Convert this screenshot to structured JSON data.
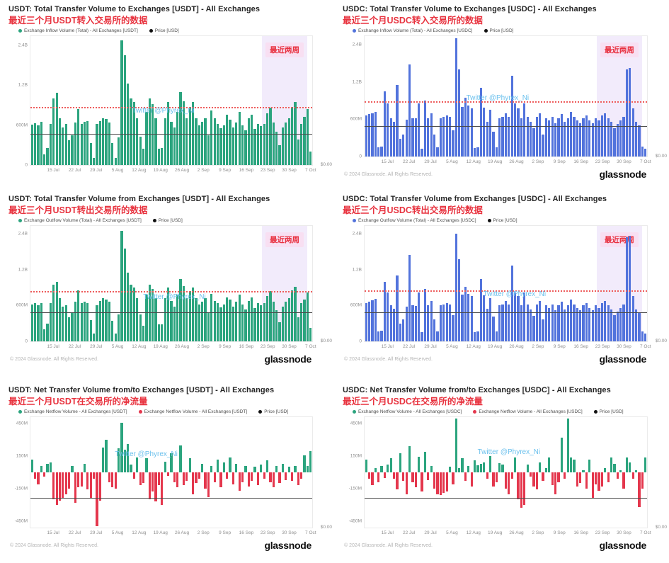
{
  "page": {
    "watermark": "Twitter @Phyrex_Ni",
    "copyright": "© 2024 Glassnode. All Rights Reserved.",
    "brand": "glassnode",
    "highlight_label": "最近两周",
    "colors": {
      "usdt_green": "#2ba47e",
      "usdc_blue": "#5273dc",
      "negative_red": "#e4374d",
      "red_dotted_line": "#ee5c5c",
      "price_line": "#4a4a4a",
      "highlight_bg": "#f2ebfb",
      "watermark_blue": "#6ac0ed",
      "subtitle_red": "#e8333f"
    }
  },
  "chart_data": [
    {
      "id": "usdt-inflow",
      "type": "bar",
      "footer": false,
      "title": "USDT: Total Transfer Volume to Exchanges [USDT] - All Exchanges",
      "subtitle": "最近三个月USDT转入交易所的数据",
      "legend": [
        {
          "label": "Exchange Inflow Volume (Total) - All Exchanges [USDT]",
          "color": "#2ba47e"
        },
        {
          "label": "Price [USD]",
          "color": "#111111"
        }
      ],
      "unit": "millions_usd",
      "bar_color": "#2ba47e",
      "y_ticks": [
        {
          "label": "2.4B",
          "value_m": 2400
        },
        {
          "label": "1.2B",
          "value_m": 1200
        },
        {
          "label": "600M",
          "value_m": 600
        },
        {
          "label": "0",
          "value_m": 0
        }
      ],
      "x_ticks": [
        "15 Jul",
        "22 Jul",
        "29 Jul",
        "5 Aug",
        "12 Aug",
        "19 Aug",
        "26 Aug",
        "2 Sep",
        "9 Sep",
        "16 Sep",
        "23 Sep",
        "30 Sep",
        "7 Oct"
      ],
      "right_axis_label": "$0.00",
      "scale_stops": [
        [
          0,
          0
        ],
        [
          600,
          0.31
        ],
        [
          1200,
          0.62
        ],
        [
          2400,
          0.93
        ]
      ],
      "red_dotted_line_m": 850,
      "price_line_m": 460,
      "highlight": {
        "from_frac": 0.822,
        "to_frac": 0.982
      },
      "watermark_pos": {
        "top_pct": 55,
        "left_pct": 36
      },
      "values_m": [
        610,
        630,
        600,
        650,
        160,
        260,
        620,
        1000,
        1080,
        700,
        560,
        620,
        370,
        450,
        640,
        840,
        620,
        650,
        660,
        330,
        110,
        620,
        660,
        700,
        690,
        640,
        330,
        110,
        420,
        2550,
        2100,
        1250,
        1000,
        950,
        700,
        430,
        240,
        800,
        1000,
        920,
        700,
        250,
        260,
        700,
        950,
        650,
        560,
        800,
        1100,
        960,
        700,
        870,
        950,
        700,
        600,
        650,
        700,
        450,
        820,
        700,
        620,
        550,
        600,
        760,
        680,
        560,
        640,
        800,
        600,
        520,
        700,
        760,
        540,
        620,
        580,
        620,
        780,
        860,
        640,
        500,
        300,
        560,
        640,
        700,
        870,
        950,
        380,
        620,
        720,
        840,
        200
      ]
    },
    {
      "id": "usdc-inflow",
      "type": "bar",
      "footer": true,
      "title": "USDC: Total Transfer Volume to Exchanges [USDC] - All Exchanges",
      "subtitle": "最近三个月USDC转入交易所的数据",
      "legend": [
        {
          "label": "Exchange Inflow Volume (Total) - All Exchanges [USDC]",
          "color": "#5273dc"
        },
        {
          "label": "Price [USD]",
          "color": "#111111"
        }
      ],
      "unit": "millions_usd",
      "bar_color": "#5273dc",
      "y_ticks": [
        {
          "label": "2.4B",
          "value_m": 2400
        },
        {
          "label": "1.2B",
          "value_m": 1200
        },
        {
          "label": "600M",
          "value_m": 600
        },
        {
          "label": "0",
          "value_m": 0
        }
      ],
      "x_ticks": [
        "15 Jul",
        "22 Jul",
        "29 Jul",
        "5 Aug",
        "12 Aug",
        "19 Aug",
        "26 Aug",
        "2 Sep",
        "9 Sep",
        "16 Sep",
        "23 Sep",
        "30 Sep",
        "7 Oct"
      ],
      "right_axis_label": "$0.00",
      "scale_stops": [
        [
          0,
          0
        ],
        [
          600,
          0.31
        ],
        [
          1200,
          0.62
        ],
        [
          2400,
          0.93
        ]
      ],
      "red_dotted_line_m": 870,
      "price_line_m": 475,
      "highlight": {
        "from_frac": 0.822,
        "to_frac": 0.982
      },
      "watermark_pos": {
        "top_pct": 48,
        "left_pct": 36
      },
      "values_m": [
        660,
        680,
        700,
        720,
        150,
        160,
        1050,
        850,
        620,
        560,
        1150,
        280,
        350,
        590,
        1750,
        620,
        610,
        850,
        130,
        900,
        620,
        700,
        350,
        150,
        620,
        640,
        660,
        640,
        420,
        2600,
        1600,
        800,
        950,
        820,
        780,
        140,
        150,
        1100,
        790,
        560,
        750,
        400,
        150,
        620,
        640,
        700,
        640,
        1400,
        850,
        780,
        620,
        850,
        640,
        560,
        450,
        640,
        700,
        350,
        620,
        580,
        640,
        540,
        620,
        680,
        560,
        620,
        720,
        640,
        580,
        540,
        620,
        660,
        580,
        540,
        620,
        580,
        660,
        700,
        620,
        560,
        460,
        520,
        580,
        640,
        1600,
        1650,
        780,
        560,
        500,
        160,
        120
      ]
    },
    {
      "id": "usdt-outflow",
      "type": "bar",
      "footer": true,
      "title": "USDT: Total Transfer Volume from Exchanges [USDT] - All Exchanges",
      "subtitle": "最近三个月USDT转出交易所的数据",
      "legend": [
        {
          "label": "Exchange Outflow Volume (Total) - All Exchanges [USDT]",
          "color": "#2ba47e"
        },
        {
          "label": "Price [USD]",
          "color": "#111111"
        }
      ],
      "unit": "millions_usd",
      "bar_color": "#2ba47e",
      "y_ticks": [
        {
          "label": "2.4B",
          "value_m": 2400
        },
        {
          "label": "1.2B",
          "value_m": 1200
        },
        {
          "label": "600M",
          "value_m": 600
        },
        {
          "label": "0",
          "value_m": 0
        }
      ],
      "x_ticks": [
        "15 Jul",
        "22 Jul",
        "29 Jul",
        "5 Aug",
        "12 Aug",
        "19 Aug",
        "26 Aug",
        "2 Sep",
        "9 Sep",
        "16 Sep",
        "23 Sep",
        "30 Sep",
        "7 Oct"
      ],
      "right_axis_label": "$0.00",
      "scale_stops": [
        [
          0,
          0
        ],
        [
          600,
          0.31
        ],
        [
          1200,
          0.62
        ],
        [
          2400,
          0.93
        ]
      ],
      "red_dotted_line_m": 820,
      "price_line_m": 475,
      "highlight": {
        "from_frac": 0.822,
        "to_frac": 0.982
      },
      "watermark_pos": {
        "top_pct": 58,
        "left_pct": 40
      },
      "values_m": [
        620,
        640,
        610,
        640,
        200,
        300,
        640,
        950,
        1000,
        720,
        580,
        600,
        400,
        470,
        660,
        860,
        640,
        660,
        640,
        360,
        130,
        600,
        680,
        720,
        700,
        660,
        350,
        130,
        450,
        2500,
        1900,
        1150,
        950,
        900,
        720,
        450,
        260,
        780,
        950,
        880,
        720,
        280,
        280,
        720,
        900,
        680,
        580,
        780,
        1050,
        930,
        720,
        840,
        900,
        720,
        620,
        660,
        720,
        470,
        800,
        680,
        640,
        570,
        620,
        740,
        700,
        580,
        660,
        780,
        620,
        540,
        680,
        740,
        560,
        640,
        600,
        640,
        760,
        840,
        660,
        520,
        320,
        580,
        660,
        720,
        850,
        920,
        400,
        640,
        700,
        820,
        220
      ]
    },
    {
      "id": "usdc-outflow",
      "type": "bar",
      "footer": true,
      "title": "USDC: Total Transfer Volume from Exchanges [USDC] - All Exchanges",
      "subtitle": "最近三个月USDC转出交易所的数据",
      "legend": [
        {
          "label": "Exchange Outflow Volume (Total) - All Exchanges [USDC]",
          "color": "#5273dc"
        },
        {
          "label": "Price [USD]",
          "color": "#111111"
        }
      ],
      "unit": "millions_usd",
      "bar_color": "#5273dc",
      "y_ticks": [
        {
          "label": "2.4B",
          "value_m": 2400
        },
        {
          "label": "1.2B",
          "value_m": 1200
        },
        {
          "label": "600M",
          "value_m": 600
        },
        {
          "label": "0",
          "value_m": 0
        }
      ],
      "x_ticks": [
        "15 Jul",
        "22 Jul",
        "29 Jul",
        "5 Aug",
        "12 Aug",
        "19 Aug",
        "26 Aug",
        "2 Sep",
        "9 Sep",
        "16 Sep",
        "23 Sep",
        "30 Sep",
        "7 Oct"
      ],
      "right_axis_label": "$0.00",
      "scale_stops": [
        [
          0,
          0
        ],
        [
          600,
          0.31
        ],
        [
          1200,
          0.62
        ],
        [
          2400,
          0.93
        ]
      ],
      "red_dotted_line_m": 830,
      "price_line_m": 470,
      "highlight": {
        "from_frac": 0.822,
        "to_frac": 0.982
      },
      "watermark_pos": {
        "top_pct": 56,
        "left_pct": 42
      },
      "values_m": [
        640,
        660,
        690,
        710,
        170,
        180,
        1000,
        820,
        600,
        550,
        1100,
        300,
        370,
        580,
        1700,
        600,
        590,
        820,
        150,
        880,
        600,
        680,
        370,
        170,
        600,
        620,
        640,
        620,
        440,
        2400,
        1550,
        780,
        920,
        800,
        760,
        160,
        170,
        1050,
        770,
        550,
        730,
        420,
        170,
        600,
        620,
        680,
        620,
        1350,
        820,
        760,
        600,
        820,
        620,
        540,
        430,
        620,
        680,
        370,
        600,
        560,
        620,
        520,
        600,
        660,
        540,
        600,
        700,
        620,
        560,
        520,
        600,
        640,
        560,
        520,
        600,
        560,
        640,
        680,
        600,
        540,
        440,
        500,
        560,
        620,
        2300,
        2350,
        760,
        540,
        480,
        170,
        130
      ]
    },
    {
      "id": "usdt-netflow",
      "type": "bar",
      "footer": true,
      "title": "USDT: Net Transfer Volume from/to Exchanges [USDT] - All Exchanges",
      "subtitle": "最近三个月USDT在交易所的净流量",
      "legend": [
        {
          "label": "Exchange Netflow Volume - All Exchanges [USDT]",
          "color": "#2ba47e"
        },
        {
          "label": "Exchange Netflow Volume - All Exchanges [USDT]",
          "color": "#e4374d"
        },
        {
          "label": "Price [USD]",
          "color": "#111111"
        }
      ],
      "unit": "millions_usd",
      "bar_color_positive": "#2ba47e",
      "bar_color_negative": "#e4374d",
      "y_ticks": [
        {
          "label": "450M",
          "value_m": 450
        },
        {
          "label": "150M",
          "value_m": 150
        },
        {
          "label": "-150M",
          "value_m": -150
        },
        {
          "label": "-450M",
          "value_m": -450
        }
      ],
      "x_ticks": [
        "15 Jul",
        "22 Jul",
        "29 Jul",
        "5 Aug",
        "12 Aug",
        "19 Aug",
        "26 Aug",
        "2 Sep",
        "9 Sep",
        "16 Sep",
        "23 Sep",
        "30 Sep",
        "7 Oct"
      ],
      "right_axis_label": "$0.00",
      "scale": {
        "type": "net",
        "max_m": 450,
        "frac_at_max": 0.44
      },
      "red_dotted_line_m": null,
      "price_line_m": -240,
      "highlight": null,
      "watermark_pos": {
        "top_pct": 30,
        "left_pct": 30
      },
      "values_m": [
        120,
        -60,
        -110,
        60,
        -40,
        80,
        90,
        -250,
        -300,
        -260,
        -240,
        -200,
        -150,
        60,
        -280,
        -140,
        -130,
        80,
        -160,
        -240,
        -60,
        -580,
        -260,
        230,
        300,
        -90,
        -140,
        -150,
        220,
        460,
        210,
        260,
        75,
        -60,
        140,
        -120,
        -100,
        130,
        -250,
        -180,
        -270,
        -120,
        -300,
        100,
        -30,
        180,
        -90,
        -140,
        250,
        -120,
        -80,
        130,
        -200,
        -100,
        -60,
        80,
        -150,
        -230,
        60,
        -90,
        120,
        -140,
        90,
        -60,
        140,
        -110,
        80,
        -170,
        -90,
        60,
        -130,
        -80,
        50,
        -120,
        70,
        -60,
        110,
        -90,
        -140,
        60,
        -100,
        80,
        -70,
        50,
        -80,
        60,
        -120,
        -60,
        160,
        60,
        200
      ]
    },
    {
      "id": "usdc-netflow",
      "type": "bar",
      "footer": true,
      "title": "USDC: Net Transfer Volume from/to Exchanges [USDC] - All Exchanges",
      "subtitle": "最近三个月USDC在交易所的净流量",
      "legend": [
        {
          "label": "Exchange Netflow Volume - All Exchanges [USDC]",
          "color": "#2ba47e"
        },
        {
          "label": "Exchange Netflow Volume - All Exchanges [USDC]",
          "color": "#e4374d"
        },
        {
          "label": "Price [USD]",
          "color": "#111111"
        }
      ],
      "unit": "millions_usd",
      "bar_color_positive": "#2ba47e",
      "bar_color_negative": "#e4374d",
      "y_ticks": [
        {
          "label": "450M",
          "value_m": 450
        },
        {
          "label": "150M",
          "value_m": 150
        },
        {
          "label": "-150M",
          "value_m": -150
        },
        {
          "label": "-450M",
          "value_m": -450
        }
      ],
      "x_ticks": [
        "15 Jul",
        "22 Jul",
        "29 Jul",
        "5 Aug",
        "12 Aug",
        "19 Aug",
        "26 Aug",
        "2 Sep",
        "9 Sep",
        "16 Sep",
        "23 Sep",
        "30 Sep",
        "7 Oct"
      ],
      "right_axis_label": "$0.00",
      "scale": {
        "type": "net",
        "max_m": 450,
        "frac_at_max": 0.44
      },
      "red_dotted_line_m": null,
      "price_line_m": -240,
      "highlight": null,
      "watermark_pos": {
        "top_pct": 28,
        "left_pct": 40
      },
      "values_m": [
        120,
        -60,
        -120,
        40,
        -90,
        60,
        -50,
        70,
        130,
        -60,
        -160,
        180,
        -80,
        -200,
        240,
        -90,
        -140,
        145,
        -180,
        190,
        -70,
        60,
        -150,
        -200,
        -210,
        -190,
        -180,
        50,
        -110,
        530,
        40,
        130,
        -80,
        60,
        -130,
        110,
        65,
        80,
        95,
        -60,
        150,
        -130,
        -90,
        85,
        70,
        -150,
        -200,
        -60,
        140,
        -250,
        -330,
        -300,
        75,
        -40,
        -130,
        -160,
        90,
        -80,
        40,
        140,
        -120,
        -200,
        -90,
        320,
        -60,
        520,
        135,
        120,
        -130,
        -100,
        20,
        -150,
        120,
        -240,
        -110,
        -170,
        -130,
        40,
        -90,
        140,
        80,
        -60,
        20,
        -150,
        135,
        90,
        -60,
        20,
        -320,
        -150,
        135
      ]
    }
  ]
}
